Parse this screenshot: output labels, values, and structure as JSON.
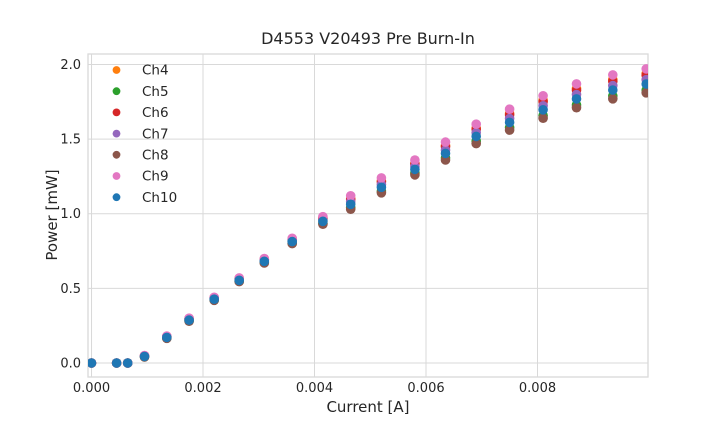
{
  "styles": {
    "background": "#ffffff",
    "grid_color": "#d9d9d9",
    "spine_color": "#d9d9d9",
    "text_color": "#262626"
  },
  "chart_data": {
    "type": "scatter",
    "title": "D4553 V20493 Pre Burn-In",
    "xlabel": "Current [A]",
    "ylabel": "Power [mW]",
    "grid": true,
    "legend_position": "upper-left",
    "xlim": [
      -6.3e-05,
      0.009982
    ],
    "ylim": [
      -0.094,
      2.07
    ],
    "xticks": {
      "values": [
        0,
        0.002,
        0.004,
        0.006,
        0.008
      ],
      "labels": [
        "0.000",
        "0.002",
        "0.004",
        "0.006",
        "0.008"
      ]
    },
    "yticks": {
      "values": [
        0,
        0.5,
        1.0,
        1.5,
        2.0
      ],
      "labels": [
        "0.0",
        "0.5",
        "1.0",
        "1.5",
        "2.0"
      ]
    },
    "x": [
      0.0,
      0.00045,
      0.00065,
      0.00095,
      0.00135,
      0.00175,
      0.0022,
      0.00265,
      0.0031,
      0.0036,
      0.00415,
      0.00465,
      0.0052,
      0.0058,
      0.00635,
      0.0069,
      0.0075,
      0.0081,
      0.0087,
      0.00935,
      0.00995
    ],
    "series": [
      {
        "name": "Ch4",
        "color": "#ff7f0e",
        "values": [
          0.0,
          0.0,
          0.0,
          0.048,
          0.177,
          0.296,
          0.436,
          0.565,
          0.694,
          0.828,
          0.97,
          1.102,
          1.22,
          1.34,
          1.456,
          1.574,
          1.672,
          1.76,
          1.838,
          1.898,
          1.938
        ]
      },
      {
        "name": "Ch5",
        "color": "#2ca02c",
        "values": [
          0.0,
          0.0,
          0.0,
          0.041,
          0.167,
          0.282,
          0.422,
          0.548,
          0.674,
          0.804,
          0.936,
          1.041,
          1.152,
          1.272,
          1.374,
          1.486,
          1.577,
          1.658,
          1.729,
          1.789,
          1.829
        ]
      },
      {
        "name": "Ch6",
        "color": "#d62728",
        "values": [
          0.0,
          0.0,
          0.0,
          0.047,
          0.176,
          0.295,
          0.435,
          0.563,
          0.692,
          0.826,
          0.967,
          1.096,
          1.213,
          1.333,
          1.448,
          1.565,
          1.662,
          1.75,
          1.827,
          1.887,
          1.927
        ]
      },
      {
        "name": "Ch7",
        "color": "#9467bd",
        "values": [
          0.0,
          0.0,
          0.0,
          0.046,
          0.173,
          0.291,
          0.431,
          0.559,
          0.687,
          0.819,
          0.958,
          1.08,
          1.195,
          1.315,
          1.426,
          1.542,
          1.637,
          1.723,
          1.798,
          1.858,
          1.898
        ]
      },
      {
        "name": "Ch8",
        "color": "#8c564b",
        "values": [
          0.0,
          0.0,
          0.0,
          0.04,
          0.165,
          0.28,
          0.42,
          0.545,
          0.67,
          0.8,
          0.93,
          1.03,
          1.14,
          1.26,
          1.36,
          1.47,
          1.56,
          1.64,
          1.71,
          1.77,
          1.81
        ]
      },
      {
        "name": "Ch9",
        "color": "#e377c2",
        "values": [
          0.0,
          0.0,
          0.0,
          0.05,
          0.18,
          0.3,
          0.44,
          0.57,
          0.7,
          0.835,
          0.98,
          1.12,
          1.24,
          1.36,
          1.48,
          1.6,
          1.7,
          1.79,
          1.87,
          1.93,
          1.97
        ]
      },
      {
        "name": "Ch10",
        "color": "#1f77b4",
        "values": [
          0.0,
          0.0,
          0.0,
          0.044,
          0.171,
          0.287,
          0.427,
          0.554,
          0.681,
          0.813,
          0.949,
          1.063,
          1.177,
          1.297,
          1.404,
          1.518,
          1.612,
          1.696,
          1.769,
          1.829,
          1.869
        ]
      }
    ]
  }
}
